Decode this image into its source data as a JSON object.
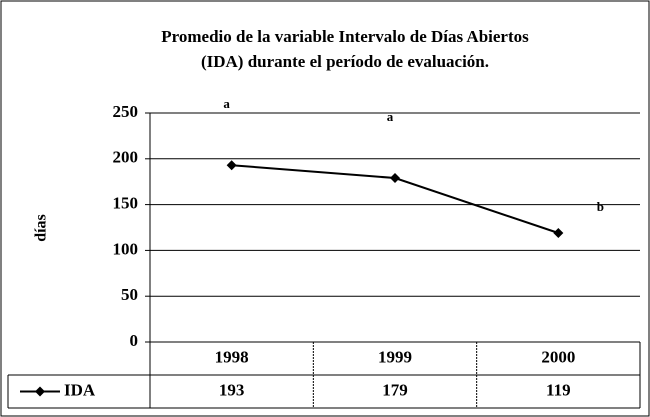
{
  "chart_data": {
    "type": "line",
    "title": [
      "Promedio de la variable Intervalo de Días Abiertos",
      "(IDA) durante el período de evaluación."
    ],
    "ylabel": "días",
    "categories": [
      "1998",
      "1999",
      "2000"
    ],
    "series": [
      {
        "name": "IDA",
        "color": "#000000",
        "values": [
          193,
          179,
          119
        ]
      }
    ],
    "annotations": [
      "a",
      "a",
      "b"
    ],
    "ylim": [
      0,
      250
    ],
    "yticks": [
      0,
      50,
      100,
      150,
      200,
      250
    ],
    "grid": true
  }
}
